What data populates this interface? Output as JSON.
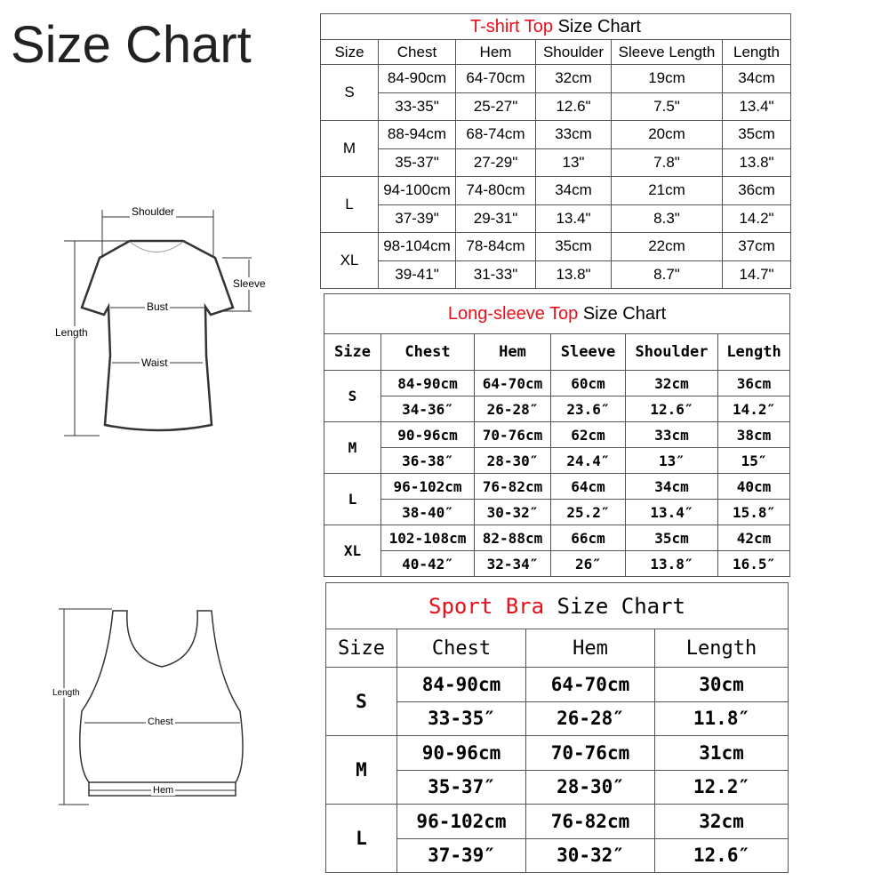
{
  "title": "Size Chart",
  "diagram_tshirt": {
    "shoulder": "Shoulder",
    "sleeve": "Sleeve",
    "bust": "Bust",
    "length": "Length",
    "waist": "Waist"
  },
  "diagram_bra": {
    "length": "Length",
    "chest": "Chest",
    "hem": "Hem"
  },
  "tables": [
    {
      "title_red": "T-shirt Top",
      "title_black": "Size Chart",
      "headers": [
        "Size",
        "Chest",
        "Hem",
        "Shoulder",
        "Sleeve Length",
        "Length"
      ],
      "rows": [
        {
          "size": "S",
          "cm": [
            "84-90cm",
            "64-70cm",
            "32cm",
            "19cm",
            "34cm"
          ],
          "in": [
            "33-35\"",
            "25-27\"",
            "12.6\"",
            "7.5\"",
            "13.4\""
          ]
        },
        {
          "size": "M",
          "cm": [
            "88-94cm",
            "68-74cm",
            "33cm",
            "20cm",
            "35cm"
          ],
          "in": [
            "35-37\"",
            "27-29\"",
            "13\"",
            "7.8\"",
            "13.8\""
          ]
        },
        {
          "size": "L",
          "cm": [
            "94-100cm",
            "74-80cm",
            "34cm",
            "21cm",
            "36cm"
          ],
          "in": [
            "37-39\"",
            "29-31\"",
            "13.4\"",
            "8.3\"",
            "14.2\""
          ]
        },
        {
          "size": "XL",
          "cm": [
            "98-104cm",
            "78-84cm",
            "35cm",
            "22cm",
            "37cm"
          ],
          "in": [
            "39-41\"",
            "31-33\"",
            "13.8\"",
            "8.7\"",
            "14.7\""
          ]
        }
      ]
    },
    {
      "title_red": "Long-sleeve Top",
      "title_black": "Size Chart",
      "headers": [
        "Size",
        "Chest",
        "Hem",
        "Sleeve",
        "Shoulder",
        "Length"
      ],
      "rows": [
        {
          "size": "S",
          "cm": [
            "84-90cm",
            "64-70cm",
            "60cm",
            "32cm",
            "36cm"
          ],
          "in": [
            "34-36″",
            "26-28″",
            "23.6″",
            "12.6″",
            "14.2″"
          ]
        },
        {
          "size": "M",
          "cm": [
            "90-96cm",
            "70-76cm",
            "62cm",
            "33cm",
            "38cm"
          ],
          "in": [
            "36-38″",
            "28-30″",
            "24.4″",
            "13″",
            "15″"
          ]
        },
        {
          "size": "L",
          "cm": [
            "96-102cm",
            "76-82cm",
            "64cm",
            "34cm",
            "40cm"
          ],
          "in": [
            "38-40″",
            "30-32″",
            "25.2″",
            "13.4″",
            "15.8″"
          ]
        },
        {
          "size": "XL",
          "cm": [
            "102-108cm",
            "82-88cm",
            "66cm",
            "35cm",
            "42cm"
          ],
          "in": [
            "40-42″",
            "32-34″",
            "26″",
            "13.8″",
            "16.5″"
          ]
        }
      ]
    },
    {
      "title_red": "Sport Bra",
      "title_black": "Size Chart",
      "headers": [
        "Size",
        "Chest",
        "Hem",
        "Length"
      ],
      "rows": [
        {
          "size": "S",
          "cm": [
            "84-90cm",
            "64-70cm",
            "30cm"
          ],
          "in": [
            "33-35″",
            "26-28″",
            "11.8″"
          ]
        },
        {
          "size": "M",
          "cm": [
            "90-96cm",
            "70-76cm",
            "31cm"
          ],
          "in": [
            "35-37″",
            "28-30″",
            "12.2″"
          ]
        },
        {
          "size": "L",
          "cm": [
            "96-102cm",
            "76-82cm",
            "32cm"
          ],
          "in": [
            "37-39″",
            "30-32″",
            "12.6″"
          ]
        }
      ]
    }
  ]
}
